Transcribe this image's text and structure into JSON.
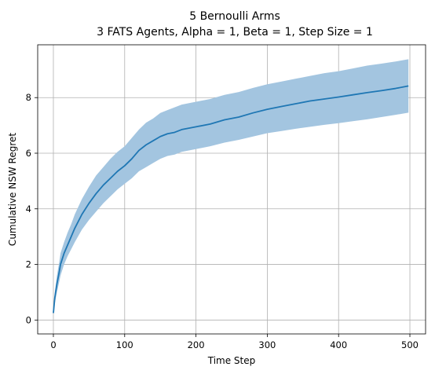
{
  "chart_data": {
    "type": "line",
    "title_line1": "5 Bernoulli Arms",
    "title_line2": "3 FATS Agents, Alpha = 1, Beta = 1, Step Size = 1",
    "xlabel": "Time Step",
    "ylabel": "Cumulative NSW Regret",
    "xlim": [
      -22,
      522
    ],
    "ylim": [
      -0.5,
      9.9
    ],
    "xticks": [
      0,
      100,
      200,
      300,
      400,
      500
    ],
    "yticks": [
      0,
      2,
      4,
      6,
      8
    ],
    "grid": true,
    "colors": {
      "line": "#1f77b4",
      "band": "#a3c5e0"
    },
    "series": [
      {
        "x": [
          0,
          2,
          5,
          8,
          10,
          15,
          20,
          25,
          30,
          40,
          50,
          60,
          70,
          80,
          90,
          100,
          110,
          120,
          130,
          140,
          150,
          160,
          170,
          180,
          200,
          220,
          240,
          260,
          280,
          300,
          320,
          340,
          360,
          380,
          400,
          420,
          440,
          460,
          480,
          498
        ],
        "y": [
          0.25,
          0.8,
          1.3,
          1.7,
          2.0,
          2.4,
          2.7,
          3.0,
          3.3,
          3.8,
          4.2,
          4.55,
          4.85,
          5.1,
          5.35,
          5.55,
          5.8,
          6.1,
          6.3,
          6.45,
          6.6,
          6.7,
          6.75,
          6.85,
          6.95,
          7.05,
          7.2,
          7.3,
          7.45,
          7.58,
          7.68,
          7.78,
          7.88,
          7.95,
          8.02,
          8.1,
          8.18,
          8.25,
          8.33,
          8.42
        ],
        "lower": [
          0.25,
          0.6,
          1.0,
          1.35,
          1.6,
          2.0,
          2.3,
          2.55,
          2.8,
          3.25,
          3.6,
          3.9,
          4.2,
          4.45,
          4.7,
          4.9,
          5.1,
          5.35,
          5.5,
          5.65,
          5.8,
          5.9,
          5.95,
          6.05,
          6.15,
          6.25,
          6.38,
          6.48,
          6.6,
          6.72,
          6.8,
          6.88,
          6.95,
          7.02,
          7.08,
          7.15,
          7.22,
          7.3,
          7.38,
          7.46
        ],
        "upper": [
          0.25,
          1.0,
          1.6,
          2.05,
          2.4,
          2.8,
          3.15,
          3.45,
          3.8,
          4.35,
          4.8,
          5.2,
          5.5,
          5.8,
          6.05,
          6.25,
          6.55,
          6.85,
          7.1,
          7.25,
          7.45,
          7.55,
          7.65,
          7.75,
          7.85,
          7.95,
          8.1,
          8.2,
          8.35,
          8.48,
          8.58,
          8.68,
          8.78,
          8.88,
          8.95,
          9.05,
          9.15,
          9.22,
          9.3,
          9.38
        ]
      }
    ]
  }
}
